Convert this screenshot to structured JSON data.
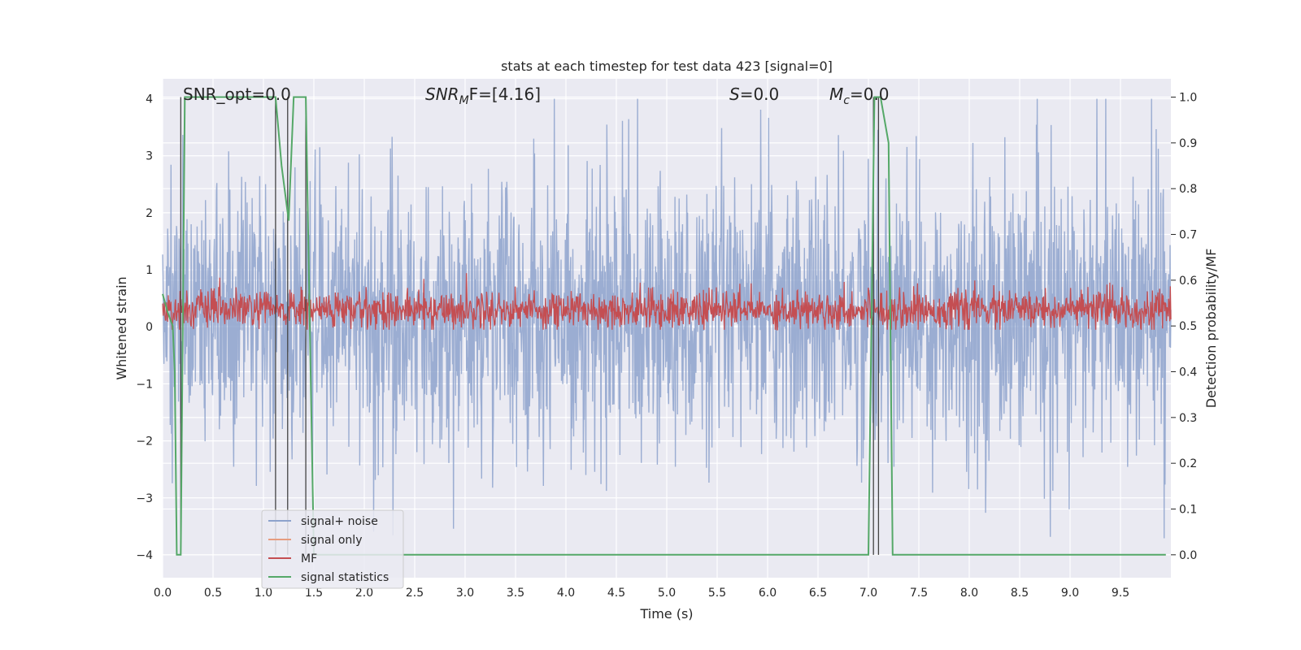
{
  "chart_data": {
    "type": "line",
    "title": "stats at each timestep for test data 423 [signal=0]",
    "xlabel": "Time (s)",
    "ylabel_left": "Whitened strain",
    "ylabel_right": "Detection probability/MF",
    "xlim": [
      0.0,
      10.0
    ],
    "ylim_left": [
      -4.4,
      4.35
    ],
    "ylim_right": [
      -0.05,
      1.04
    ],
    "x_ticks": [
      "0.0",
      "0.5",
      "1.0",
      "1.5",
      "2.0",
      "2.5",
      "3.0",
      "3.5",
      "4.0",
      "4.5",
      "5.0",
      "5.5",
      "6.0",
      "6.5",
      "7.0",
      "7.5",
      "8.0",
      "8.5",
      "9.0",
      "9.5"
    ],
    "y_ticks_left": [
      "4",
      "3",
      "2",
      "1",
      "0",
      "−1",
      "−2",
      "−3",
      "−4"
    ],
    "y_ticks_right": [
      "1.0",
      "0.9",
      "0.8",
      "0.7",
      "0.6",
      "0.5",
      "0.4",
      "0.3",
      "0.2",
      "0.1",
      "0.0"
    ],
    "grid": true,
    "legend_position": "lower-left",
    "annotations": {
      "snr_opt": "SNR_opt=0.0",
      "snr_mf_prefix": "SNR",
      "snr_mf_sub": "M",
      "snr_mf_suffix": "F=[4.16]",
      "s_var": "S",
      "s_val": "=0.0",
      "mc_var": "M",
      "mc_sub": "c",
      "mc_val": "=0.0"
    },
    "series": [
      {
        "name": "signal+ noise",
        "color": "#8da2cc",
        "axis": "left",
        "stats": {
          "amplitude_envelope": [
            -4.0,
            4.0
          ],
          "typical_range": [
            -1.6,
            2.3
          ]
        }
      },
      {
        "name": "signal only",
        "color": "#e69c7f",
        "axis": "left",
        "values": []
      },
      {
        "name": "MF",
        "color": "#c44e52",
        "axis": "left",
        "stats": {
          "typical_range": [
            0.0,
            0.75
          ],
          "mean": 0.3
        }
      },
      {
        "name": "signal statistics",
        "color": "#55a868",
        "axis": "right",
        "x": [
          0.0,
          0.05,
          0.1,
          0.12,
          0.14,
          0.18,
          0.22,
          0.26,
          0.3,
          0.5,
          1.0,
          1.12,
          1.18,
          1.25,
          1.3,
          1.38,
          1.42,
          1.46,
          1.5,
          1.55,
          1.6,
          7.0,
          7.06,
          7.12,
          7.2,
          7.24,
          7.3,
          9.95
        ],
        "y": [
          0.57,
          0.53,
          0.5,
          0.4,
          0.0,
          0.0,
          1.0,
          1.0,
          1.0,
          1.0,
          1.0,
          1.0,
          0.85,
          0.73,
          1.0,
          1.0,
          1.0,
          0.5,
          0.0,
          0.0,
          0.0,
          0.0,
          1.0,
          1.0,
          0.9,
          0.0,
          0.0,
          0.0
        ]
      }
    ],
    "vertical_markers_x": [
      0.18,
      1.12,
      1.24,
      1.42,
      7.05,
      7.1
    ]
  }
}
